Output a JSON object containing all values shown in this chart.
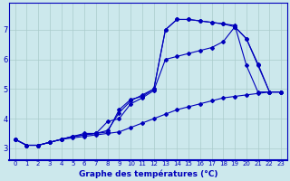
{
  "xlabel": "Graphe des températures (°C)",
  "bg_color": "#cce8ec",
  "line_color": "#0000bb",
  "grid_color": "#aacccc",
  "axis_color": "#0000bb",
  "xlim": [
    -0.5,
    23.5
  ],
  "ylim": [
    2.6,
    7.9
  ],
  "xticks": [
    0,
    1,
    2,
    3,
    4,
    5,
    6,
    7,
    8,
    9,
    10,
    11,
    12,
    13,
    14,
    15,
    16,
    17,
    18,
    19,
    20,
    21,
    22,
    23
  ],
  "yticks": [
    3,
    4,
    5,
    6,
    7
  ],
  "line1_x": [
    0,
    1,
    2,
    3,
    4,
    5,
    6,
    7,
    8,
    9,
    10,
    11,
    12,
    13,
    14,
    15,
    16,
    17,
    18,
    19,
    20,
    21,
    22,
    23
  ],
  "line1_y": [
    3.3,
    3.1,
    3.1,
    3.2,
    3.3,
    3.4,
    3.45,
    3.5,
    3.55,
    4.3,
    4.65,
    4.75,
    5.0,
    7.0,
    7.35,
    7.35,
    7.3,
    7.25,
    7.2,
    7.15,
    5.8,
    4.9,
    4.9,
    4.9
  ],
  "line2_x": [
    0,
    1,
    2,
    3,
    4,
    5,
    6,
    7,
    8,
    9,
    10,
    11,
    12,
    13,
    14,
    15,
    16,
    17,
    18,
    19,
    20,
    21,
    22,
    23
  ],
  "line2_y": [
    3.3,
    3.1,
    3.1,
    3.2,
    3.3,
    3.4,
    3.45,
    3.5,
    3.6,
    4.2,
    4.6,
    4.8,
    5.0,
    7.0,
    7.35,
    7.35,
    7.3,
    7.25,
    7.2,
    7.1,
    6.7,
    5.8,
    4.9,
    4.9
  ],
  "line3_x": [
    0,
    1,
    2,
    3,
    4,
    5,
    6,
    7,
    8,
    9,
    10,
    11,
    12,
    13,
    14,
    15,
    16,
    17,
    18,
    19,
    20,
    21,
    22,
    23
  ],
  "line3_y": [
    3.3,
    3.1,
    3.1,
    3.2,
    3.3,
    3.4,
    3.5,
    3.5,
    3.9,
    4.0,
    4.5,
    4.7,
    4.95,
    6.0,
    6.1,
    6.2,
    6.3,
    6.4,
    6.6,
    7.1,
    6.7,
    5.85,
    4.9,
    4.9
  ],
  "line4_x": [
    0,
    1,
    2,
    3,
    4,
    5,
    6,
    7,
    8,
    9,
    10,
    11,
    12,
    13,
    14,
    15,
    16,
    17,
    18,
    19,
    20,
    21,
    22,
    23
  ],
  "line4_y": [
    3.3,
    3.1,
    3.1,
    3.2,
    3.3,
    3.35,
    3.4,
    3.45,
    3.5,
    3.55,
    3.7,
    3.85,
    4.0,
    4.15,
    4.3,
    4.4,
    4.5,
    4.6,
    4.7,
    4.75,
    4.8,
    4.85,
    4.9,
    4.9
  ]
}
